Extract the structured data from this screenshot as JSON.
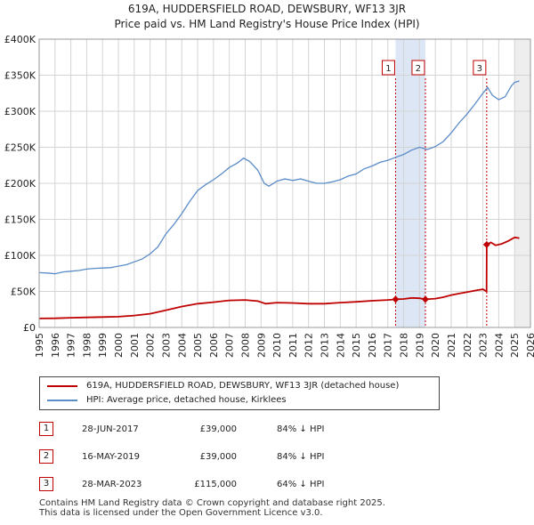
{
  "chart_data": {
    "type": "line",
    "title": "619A, HUDDERSFIELD ROAD, DEWSBURY, WF13 3JR",
    "subtitle": "Price paid vs. HM Land Registry's House Price Index (HPI)",
    "xlim": [
      1995,
      2026
    ],
    "ylim": [
      0,
      400000
    ],
    "y_ticks": [
      0,
      50000,
      100000,
      150000,
      200000,
      250000,
      300000,
      350000,
      400000
    ],
    "y_tick_labels": [
      "£0",
      "£50K",
      "£100K",
      "£150K",
      "£200K",
      "£250K",
      "£300K",
      "£350K",
      "£400K"
    ],
    "x_ticks": [
      1995,
      1996,
      1997,
      1998,
      1999,
      2000,
      2001,
      2002,
      2003,
      2004,
      2005,
      2006,
      2007,
      2008,
      2009,
      2010,
      2011,
      2012,
      2013,
      2014,
      2015,
      2016,
      2017,
      2018,
      2019,
      2020,
      2021,
      2022,
      2023,
      2024,
      2025,
      2026
    ],
    "x_tick_labels": [
      "1995",
      "1996",
      "1997",
      "1998",
      "1999",
      "2000",
      "2001",
      "2002",
      "2003",
      "2004",
      "2005",
      "2006",
      "2007",
      "2008",
      "2009",
      "2010",
      "2011",
      "2012",
      "2013",
      "2014",
      "2015",
      "2016",
      "2017",
      "2018",
      "2019",
      "2020",
      "2021",
      "2022",
      "2023",
      "2024",
      "2025",
      "2026"
    ],
    "grid": true,
    "series": [
      {
        "name": "619A, HUDDERSFIELD ROAD, DEWSBURY, WF13 3JR (detached house)",
        "color": "#c00000",
        "points": [
          [
            1995.0,
            12500
          ],
          [
            1996.0,
            12700
          ],
          [
            1997.0,
            13500
          ],
          [
            1998.0,
            14000
          ],
          [
            1999.0,
            14500
          ],
          [
            2000.0,
            15000
          ],
          [
            2001.0,
            16500
          ],
          [
            2002.0,
            19000
          ],
          [
            2003.0,
            24000
          ],
          [
            2004.0,
            29000
          ],
          [
            2005.0,
            33000
          ],
          [
            2006.0,
            35000
          ],
          [
            2007.0,
            37500
          ],
          [
            2008.0,
            38200
          ],
          [
            2008.8,
            36500
          ],
          [
            2009.3,
            33000
          ],
          [
            2010.0,
            34500
          ],
          [
            2011.0,
            34000
          ],
          [
            2012.0,
            33000
          ],
          [
            2013.0,
            33000
          ],
          [
            2014.0,
            34500
          ],
          [
            2015.0,
            35500
          ],
          [
            2016.0,
            37000
          ],
          [
            2017.0,
            38200
          ],
          [
            2017.49,
            39000
          ],
          [
            2018.0,
            39500
          ],
          [
            2018.5,
            41000
          ],
          [
            2019.0,
            40500
          ],
          [
            2019.37,
            39000
          ],
          [
            2020.0,
            40000
          ],
          [
            2020.5,
            42000
          ],
          [
            2021.0,
            45000
          ],
          [
            2021.5,
            47000
          ],
          [
            2022.0,
            49000
          ],
          [
            2022.6,
            51500
          ],
          [
            2023.0,
            53000
          ],
          [
            2023.23,
            50000
          ],
          [
            2023.24,
            115000
          ],
          [
            2023.5,
            118000
          ],
          [
            2023.8,
            114000
          ],
          [
            2024.2,
            116000
          ],
          [
            2024.6,
            120000
          ],
          [
            2025.0,
            125000
          ],
          [
            2025.3,
            124000
          ]
        ]
      },
      {
        "name": "HPI: Average price, detached house, Kirklees",
        "color": "#5a8cc8",
        "points": [
          [
            1995.0,
            76000
          ],
          [
            1995.5,
            75500
          ],
          [
            1996.0,
            74500
          ],
          [
            1996.5,
            77000
          ],
          [
            1997.0,
            78000
          ],
          [
            1997.5,
            79000
          ],
          [
            1998.0,
            81000
          ],
          [
            1998.5,
            82000
          ],
          [
            1999.0,
            82500
          ],
          [
            1999.5,
            83000
          ],
          [
            2000.0,
            85000
          ],
          [
            2000.5,
            87000
          ],
          [
            2001.0,
            91000
          ],
          [
            2001.5,
            95000
          ],
          [
            2002.0,
            102000
          ],
          [
            2002.5,
            112000
          ],
          [
            2003.0,
            130000
          ],
          [
            2003.5,
            143000
          ],
          [
            2004.0,
            158000
          ],
          [
            2004.5,
            175000
          ],
          [
            2005.0,
            190000
          ],
          [
            2005.5,
            198000
          ],
          [
            2006.0,
            205000
          ],
          [
            2006.5,
            213000
          ],
          [
            2007.0,
            222000
          ],
          [
            2007.5,
            228000
          ],
          [
            2007.9,
            235000
          ],
          [
            2008.3,
            230000
          ],
          [
            2008.8,
            218000
          ],
          [
            2009.2,
            200000
          ],
          [
            2009.5,
            196000
          ],
          [
            2010.0,
            203000
          ],
          [
            2010.5,
            206000
          ],
          [
            2011.0,
            204000
          ],
          [
            2011.5,
            206000
          ],
          [
            2012.0,
            203000
          ],
          [
            2012.5,
            200000
          ],
          [
            2013.0,
            200000
          ],
          [
            2013.5,
            202000
          ],
          [
            2014.0,
            205000
          ],
          [
            2014.5,
            210000
          ],
          [
            2015.0,
            213000
          ],
          [
            2015.5,
            220000
          ],
          [
            2016.0,
            224000
          ],
          [
            2016.5,
            229000
          ],
          [
            2017.0,
            232000
          ],
          [
            2017.5,
            236000
          ],
          [
            2018.0,
            240000
          ],
          [
            2018.5,
            246000
          ],
          [
            2019.0,
            250000
          ],
          [
            2019.5,
            247000
          ],
          [
            2020.0,
            251000
          ],
          [
            2020.5,
            258000
          ],
          [
            2021.0,
            270000
          ],
          [
            2021.5,
            284000
          ],
          [
            2022.0,
            296000
          ],
          [
            2022.5,
            310000
          ],
          [
            2023.0,
            325000
          ],
          [
            2023.3,
            333000
          ],
          [
            2023.6,
            322000
          ],
          [
            2024.0,
            316000
          ],
          [
            2024.4,
            320000
          ],
          [
            2024.8,
            335000
          ],
          [
            2025.0,
            340000
          ],
          [
            2025.3,
            342000
          ]
        ]
      }
    ],
    "transactions": [
      {
        "id": "1",
        "date": "28-JUN-2017",
        "x": 2017.49,
        "price": 39000,
        "price_label": "£39,000",
        "hpi": "84% ↓ HPI"
      },
      {
        "id": "2",
        "date": "16-MAY-2019",
        "x": 2019.37,
        "price": 39000,
        "price_label": "£39,000",
        "hpi": "84% ↓ HPI"
      },
      {
        "id": "3",
        "date": "28-MAR-2023",
        "x": 2023.24,
        "price": 115000,
        "price_label": "£115,000",
        "hpi": "64% ↓ HPI"
      }
    ],
    "shaded_ranges": [
      [
        2017.49,
        2019.37
      ],
      [
        2025.0,
        2026.0
      ]
    ]
  },
  "colors": {
    "price": "#c00000",
    "hpi": "#5a8cc8",
    "shade_sale": "#dce6f5",
    "shade_future": "#eeeeee",
    "grid": "#d4d4d4"
  },
  "legend": {
    "price_label": "619A, HUDDERSFIELD ROAD, DEWSBURY, WF13 3JR (detached house)",
    "hpi_label": "HPI: Average price, detached house, Kirklees"
  },
  "footer": {
    "line1": "Contains HM Land Registry data © Crown copyright and database right 2025.",
    "line2": "This data is licensed under the Open Government Licence v3.0."
  }
}
